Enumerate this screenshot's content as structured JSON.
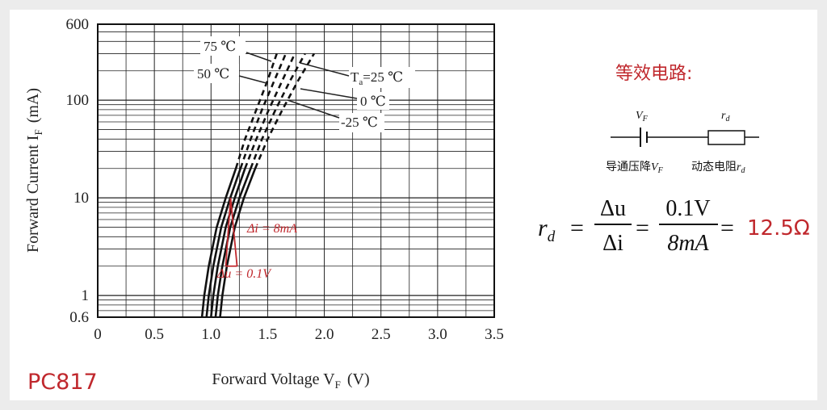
{
  "chart_data": {
    "type": "line",
    "device": "PC817",
    "xlabel": "Forward Voltage V",
    "xlabel_sub": "F",
    "xlabel_unit": "(V)",
    "ylabel": "Forward Current I",
    "ylabel_sub": "F",
    "ylabel_unit": "(mA)",
    "xlim": [
      0,
      3.5
    ],
    "ylim": [
      0.6,
      600
    ],
    "y_scale": "log",
    "grid": true,
    "x_ticks": [
      "0",
      "0.5",
      "1.0",
      "1.5",
      "2.0",
      "2.5",
      "3.0",
      "3.5"
    ],
    "x_tick_values": [
      0,
      0.5,
      1.0,
      1.5,
      2.0,
      2.5,
      3.0,
      3.5
    ],
    "y_ticks": [
      "600",
      "100",
      "10",
      "1",
      "0.6"
    ],
    "y_tick_values": [
      600,
      100,
      10,
      1,
      0.6
    ],
    "series": [
      {
        "name": "75 ℃",
        "x": [
          0.92,
          0.94,
          0.98,
          1.05,
          1.13,
          1.22,
          1.3,
          1.4,
          1.5,
          1.58
        ],
        "y": [
          0.6,
          1,
          2,
          5,
          10,
          20,
          40,
          80,
          160,
          300
        ]
      },
      {
        "name": "50 ℃",
        "x": [
          0.96,
          0.98,
          1.02,
          1.09,
          1.17,
          1.26,
          1.35,
          1.45,
          1.56,
          1.66
        ],
        "y": [
          0.6,
          1,
          2,
          5,
          10,
          20,
          40,
          80,
          160,
          300
        ]
      },
      {
        "name": "Ta=25 ℃",
        "x": [
          1.0,
          1.02,
          1.06,
          1.13,
          1.21,
          1.3,
          1.4,
          1.51,
          1.63,
          1.74
        ],
        "y": [
          0.6,
          1,
          2,
          5,
          10,
          20,
          40,
          80,
          160,
          300
        ]
      },
      {
        "name": "0 ℃",
        "x": [
          1.04,
          1.06,
          1.1,
          1.17,
          1.25,
          1.35,
          1.45,
          1.57,
          1.7,
          1.83
        ],
        "y": [
          0.6,
          1,
          2,
          5,
          10,
          20,
          40,
          80,
          160,
          300
        ]
      },
      {
        "name": "-25 ℃",
        "x": [
          1.08,
          1.1,
          1.14,
          1.21,
          1.29,
          1.39,
          1.5,
          1.63,
          1.77,
          1.91
        ],
        "y": [
          0.6,
          1,
          2,
          5,
          10,
          20,
          40,
          80,
          160,
          300
        ]
      }
    ],
    "dashed_above_ma": 20,
    "curve_labels": {
      "t75": "75 ℃",
      "t50": "50 ℃",
      "t25_main": "T",
      "t25_sub": "a",
      "t25_rest": "=25 ℃",
      "t0": "0 ℃",
      "tm25": "-25 ℃"
    },
    "annotations": {
      "delta_i": "Δi = 8mA",
      "delta_u": "Δu = 0.1V",
      "triangle": {
        "x_start": 1.13,
        "x_end": 1.23,
        "y_low": 2,
        "y_high": 10
      },
      "color": "#c0282d"
    }
  },
  "equivalent_circuit": {
    "title": "等效电路:",
    "title_color": "#c0282d",
    "source_symbol": "V",
    "source_symbol_sub": "F",
    "resistor_symbol": "r",
    "resistor_symbol_sub": "d",
    "source_label": "导通压降",
    "source_label_var": "V",
    "source_label_sub": "F",
    "resistor_label": "动态电阻",
    "resistor_label_var": "r",
    "resistor_label_sub": "d"
  },
  "formula": {
    "lhs": "r",
    "lhs_sub": "d",
    "eq": "=",
    "frac1_num": "Δu",
    "frac1_den": "Δi",
    "frac2_num": "0.1V",
    "frac2_den": "8mA",
    "result": "12.5Ω",
    "result_color": "#c0282d"
  },
  "colors": {
    "background": "#ececec",
    "panel": "#ffffff",
    "accent": "#c0282d"
  }
}
